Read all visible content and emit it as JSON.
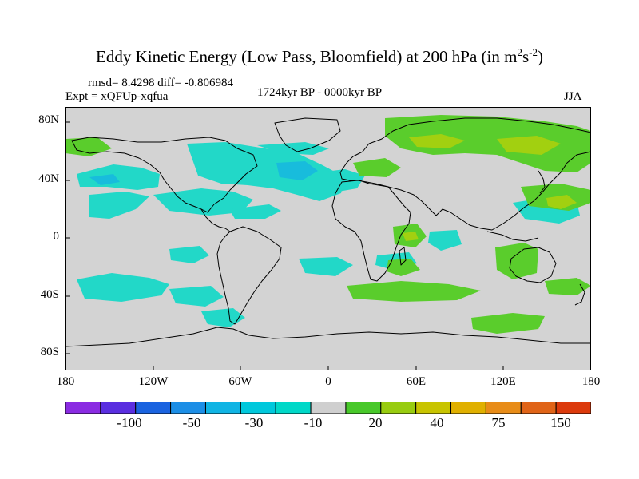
{
  "title": {
    "main": "Eddy Kinetic Energy (Low Pass, Bloomfield) at 200 hPa (in m",
    "sup1": "2",
    "mid": "s",
    "sup2": "-2",
    "close": ")"
  },
  "stats": {
    "rmsd_line": "rmsd= 8.4298 diff= -0.806984",
    "expt_line": "Expt = xQFUp-xqfua",
    "period": "1724kyr BP - 0000kyr BP",
    "season": "JJA"
  },
  "axes": {
    "y_ticks": [
      "80N",
      "40N",
      "0",
      "40S",
      "80S"
    ],
    "x_ticks": [
      "180",
      "120W",
      "60W",
      "0",
      "60E",
      "120E",
      "180"
    ]
  },
  "colorbar": {
    "colors": [
      "#8a2be2",
      "#5a2ee0",
      "#1a63e0",
      "#1c8ee6",
      "#10b4e4",
      "#00c8dc",
      "#00d8c8",
      "#cfcfcf",
      "#48c82a",
      "#98cc10",
      "#c8c400",
      "#e0b000",
      "#e88c18",
      "#e06418",
      "#dc3a0c"
    ],
    "labels": [
      "-100",
      "-50",
      "-30",
      "-10",
      "20",
      "40",
      "75",
      "150"
    ]
  },
  "map_colors": {
    "background": "#d3d3d3",
    "negative": "#22d8c8",
    "negative_strong": "#18bcdc",
    "positive": "#5acd2c",
    "positive_strong": "#a2d010"
  }
}
